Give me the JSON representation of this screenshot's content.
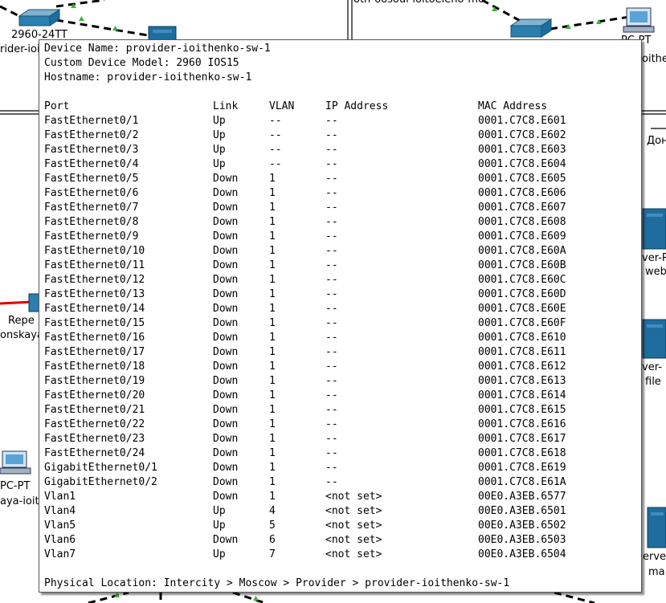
{
  "background": {
    "devices": [
      {
        "id": "sw-tl",
        "icon": "switch-icon",
        "label": "2960-24TT",
        "sublabel": "rider-ioi"
      },
      {
        "id": "srv-top",
        "icon": "server-icon",
        "label": "",
        "sublabel": ""
      },
      {
        "id": "sw-top-right",
        "icon": "switch-icon",
        "label": "",
        "sublabel": ""
      },
      {
        "id": "pc-tr",
        "icon": "pc-icon",
        "label": "PC-PT",
        "sublabel": "oither"
      },
      {
        "id": "srv-web",
        "icon": "server-icon",
        "label": "ver-P",
        "sublabel": "web"
      },
      {
        "id": "srv-file",
        "icon": "server-icon",
        "label": "ver-",
        "sublabel": "file"
      },
      {
        "id": "srv-br",
        "icon": "server-icon",
        "label": "erve",
        "sublabel": "ma"
      },
      {
        "id": "repeater",
        "icon": "repeater-icon",
        "label": "Repe",
        "sublabel": "onskaya"
      },
      {
        "id": "pc-left",
        "icon": "pc-icon",
        "label": "PC-PT",
        "sublabel": "aya-ioit"
      }
    ],
    "top_text": "oth-oosoui-ioitoeleno-mo",
    "right_edge_text": "Дон",
    "colors": {
      "link_dashed": "#000000",
      "link_ok_triangle": "#3fb23f",
      "link_red": "#e00000",
      "switch_blue": "#2a7fae",
      "server_blue": "#1f6d9e"
    }
  },
  "tooltip": {
    "device_name_line": "Device Name: provider-ioithenko-sw-1",
    "model_line": "Custom Device Model: 2960 IOS15",
    "hostname_line": "Hostname: provider-ioithenko-sw-1",
    "headers": {
      "port": "Port",
      "link": "Link",
      "vlan": "VLAN",
      "ip": "IP Address",
      "mac": "MAC Address"
    },
    "rows": [
      {
        "port": "FastEthernet0/1",
        "link": "Up",
        "vlan": "--",
        "ip": "--",
        "mac": "0001.C7C8.E601"
      },
      {
        "port": "FastEthernet0/2",
        "link": "Up",
        "vlan": "--",
        "ip": "--",
        "mac": "0001.C7C8.E602"
      },
      {
        "port": "FastEthernet0/3",
        "link": "Up",
        "vlan": "--",
        "ip": "--",
        "mac": "0001.C7C8.E603"
      },
      {
        "port": "FastEthernet0/4",
        "link": "Up",
        "vlan": "--",
        "ip": "--",
        "mac": "0001.C7C8.E604"
      },
      {
        "port": "FastEthernet0/5",
        "link": "Down",
        "vlan": "1",
        "ip": "--",
        "mac": "0001.C7C8.E605"
      },
      {
        "port": "FastEthernet0/6",
        "link": "Down",
        "vlan": "1",
        "ip": "--",
        "mac": "0001.C7C8.E606"
      },
      {
        "port": "FastEthernet0/7",
        "link": "Down",
        "vlan": "1",
        "ip": "--",
        "mac": "0001.C7C8.E607"
      },
      {
        "port": "FastEthernet0/8",
        "link": "Down",
        "vlan": "1",
        "ip": "--",
        "mac": "0001.C7C8.E608"
      },
      {
        "port": "FastEthernet0/9",
        "link": "Down",
        "vlan": "1",
        "ip": "--",
        "mac": "0001.C7C8.E609"
      },
      {
        "port": "FastEthernet0/10",
        "link": "Down",
        "vlan": "1",
        "ip": "--",
        "mac": "0001.C7C8.E60A"
      },
      {
        "port": "FastEthernet0/11",
        "link": "Down",
        "vlan": "1",
        "ip": "--",
        "mac": "0001.C7C8.E60B"
      },
      {
        "port": "FastEthernet0/12",
        "link": "Down",
        "vlan": "1",
        "ip": "--",
        "mac": "0001.C7C8.E60C"
      },
      {
        "port": "FastEthernet0/13",
        "link": "Down",
        "vlan": "1",
        "ip": "--",
        "mac": "0001.C7C8.E60D"
      },
      {
        "port": "FastEthernet0/14",
        "link": "Down",
        "vlan": "1",
        "ip": "--",
        "mac": "0001.C7C8.E60E"
      },
      {
        "port": "FastEthernet0/15",
        "link": "Down",
        "vlan": "1",
        "ip": "--",
        "mac": "0001.C7C8.E60F"
      },
      {
        "port": "FastEthernet0/16",
        "link": "Down",
        "vlan": "1",
        "ip": "--",
        "mac": "0001.C7C8.E610"
      },
      {
        "port": "FastEthernet0/17",
        "link": "Down",
        "vlan": "1",
        "ip": "--",
        "mac": "0001.C7C8.E611"
      },
      {
        "port": "FastEthernet0/18",
        "link": "Down",
        "vlan": "1",
        "ip": "--",
        "mac": "0001.C7C8.E612"
      },
      {
        "port": "FastEthernet0/19",
        "link": "Down",
        "vlan": "1",
        "ip": "--",
        "mac": "0001.C7C8.E613"
      },
      {
        "port": "FastEthernet0/20",
        "link": "Down",
        "vlan": "1",
        "ip": "--",
        "mac": "0001.C7C8.E614"
      },
      {
        "port": "FastEthernet0/21",
        "link": "Down",
        "vlan": "1",
        "ip": "--",
        "mac": "0001.C7C8.E615"
      },
      {
        "port": "FastEthernet0/22",
        "link": "Down",
        "vlan": "1",
        "ip": "--",
        "mac": "0001.C7C8.E616"
      },
      {
        "port": "FastEthernet0/23",
        "link": "Down",
        "vlan": "1",
        "ip": "--",
        "mac": "0001.C7C8.E617"
      },
      {
        "port": "FastEthernet0/24",
        "link": "Down",
        "vlan": "1",
        "ip": "--",
        "mac": "0001.C7C8.E618"
      },
      {
        "port": "GigabitEthernet0/1",
        "link": "Down",
        "vlan": "1",
        "ip": "--",
        "mac": "0001.C7C8.E619"
      },
      {
        "port": "GigabitEthernet0/2",
        "link": "Down",
        "vlan": "1",
        "ip": "--",
        "mac": "0001.C7C8.E61A"
      },
      {
        "port": "Vlan1",
        "link": "Down",
        "vlan": "1",
        "ip": "<not set>",
        "mac": "00E0.A3EB.6577"
      },
      {
        "port": "Vlan4",
        "link": "Up",
        "vlan": "4",
        "ip": "<not set>",
        "mac": "00E0.A3EB.6501"
      },
      {
        "port": "Vlan5",
        "link": "Up",
        "vlan": "5",
        "ip": "<not set>",
        "mac": "00E0.A3EB.6502"
      },
      {
        "port": "Vlan6",
        "link": "Down",
        "vlan": "6",
        "ip": "<not set>",
        "mac": "00E0.A3EB.6503"
      },
      {
        "port": "Vlan7",
        "link": "Up",
        "vlan": "7",
        "ip": "<not set>",
        "mac": "00E0.A3EB.6504"
      }
    ],
    "location_line": "Physical Location: Intercity > Moscow > Provider > provider-ioithenko-sw-1"
  }
}
